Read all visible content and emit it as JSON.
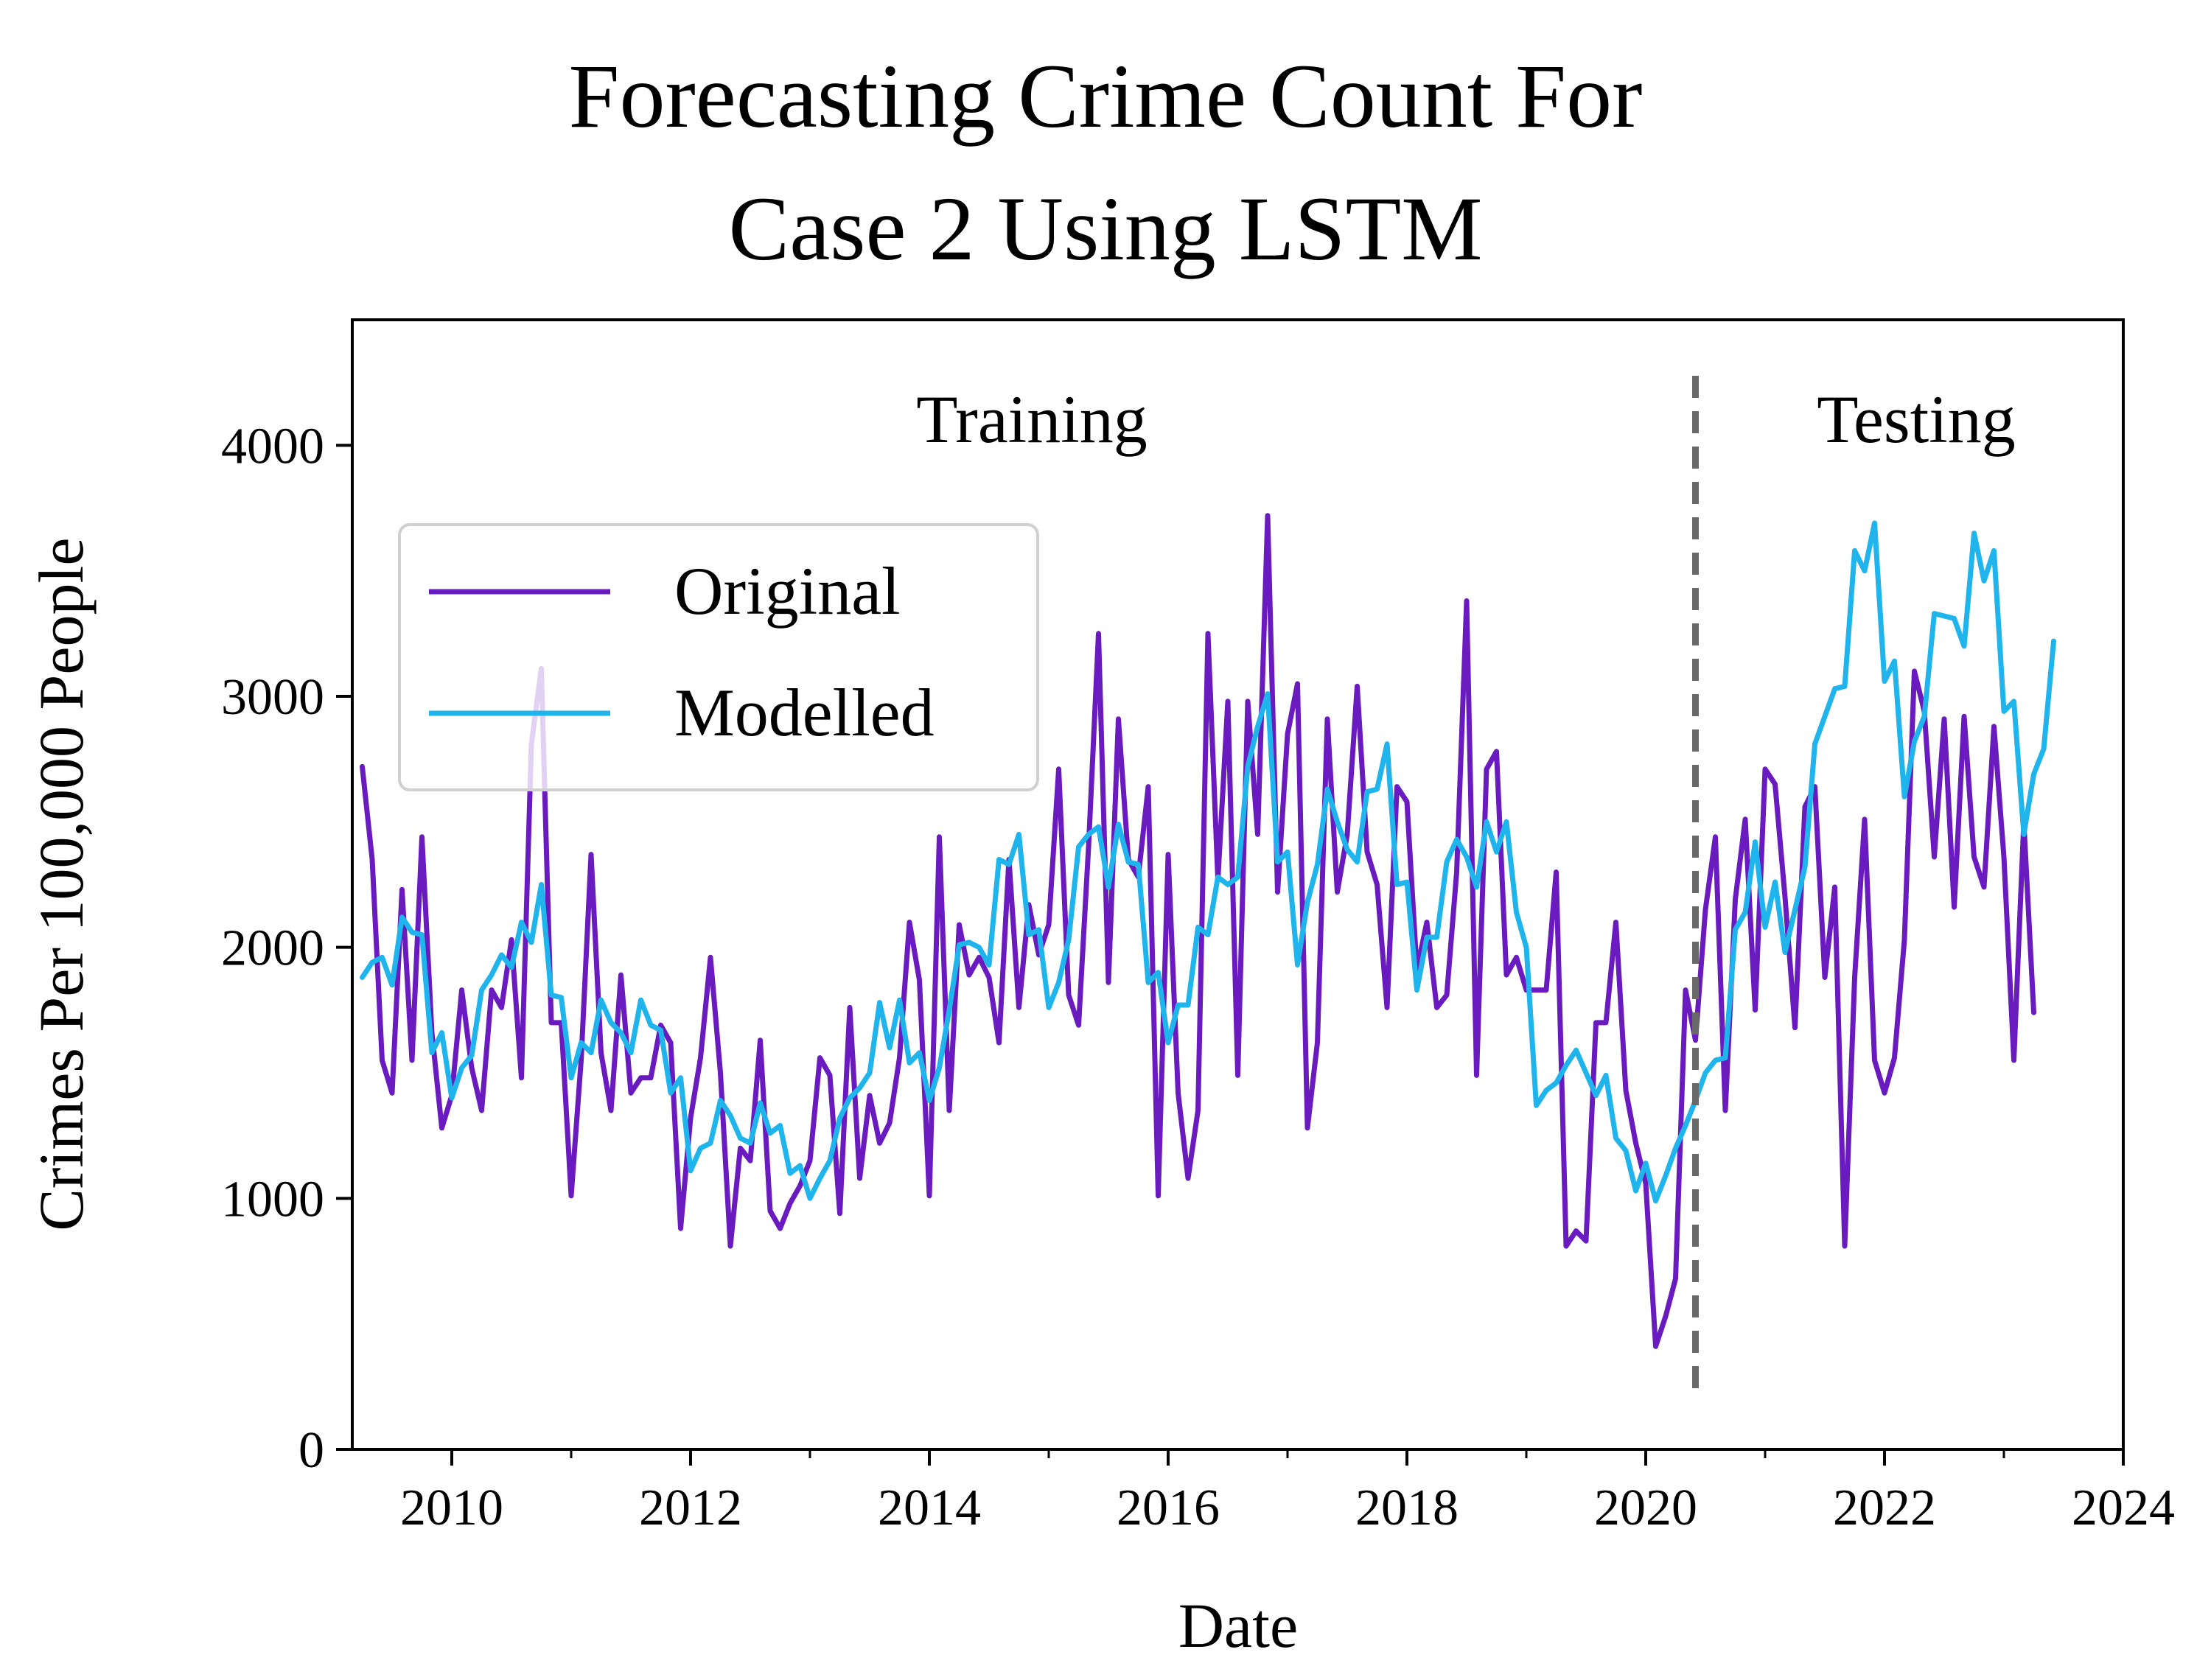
{
  "chart_data": {
    "type": "line",
    "title_lines": [
      "Forecasting Crime Count For",
      "Case 2 Using LSTM"
    ],
    "xlabel": "Date",
    "ylabel": "Crimes Per 100,000 People",
    "xlim": [
      "2009-03",
      "2024-01"
    ],
    "ylim": [
      0,
      4500
    ],
    "x_ticks": [
      "2010",
      "2012",
      "2014",
      "2016",
      "2018",
      "2020",
      "2022",
      "2024"
    ],
    "y_ticks": [
      "0",
      "1000",
      "2000",
      "3000",
      "4000"
    ],
    "grid": false,
    "legend_position": "upper-left",
    "split_date": "2020-06",
    "annotations": {
      "left": "Training",
      "right": "Testing"
    },
    "start_month": "2009-04",
    "series": [
      {
        "name": "Original",
        "color": "#6a1bbf",
        "values": [
          2720,
          2350,
          1550,
          1420,
          2230,
          1550,
          2440,
          1660,
          1280,
          1410,
          1830,
          1520,
          1350,
          1830,
          1760,
          2030,
          1480,
          2810,
          3110,
          1700,
          1700,
          1010,
          1550,
          2370,
          1580,
          1350,
          1890,
          1420,
          1480,
          1480,
          1690,
          1620,
          880,
          1320,
          1560,
          1960,
          1500,
          810,
          1200,
          1150,
          1630,
          950,
          880,
          980,
          1050,
          1150,
          1560,
          1490,
          940,
          1760,
          1080,
          1410,
          1220,
          1300,
          1560,
          2100,
          1870,
          1010,
          2440,
          1350,
          2090,
          1890,
          1960,
          1880,
          1620,
          2350,
          1760,
          2170,
          1970,
          2090,
          2710,
          1810,
          1690,
          2400,
          3250,
          1860,
          2910,
          2350,
          2280,
          2640,
          1010,
          2370,
          1420,
          1080,
          1350,
          3250,
          2270,
          2980,
          1490,
          2980,
          2450,
          3720,
          2220,
          2850,
          3050,
          1280,
          1620,
          2910,
          2220,
          2450,
          3040,
          2380,
          2250,
          1760,
          2640,
          2580,
          1910,
          2100,
          1760,
          1810,
          2300,
          3380,
          1490,
          2710,
          2780,
          1890,
          1960,
          1830,
          1830,
          1830,
          2300,
          810,
          870,
          830,
          1700,
          1700,
          2100,
          1430,
          1220,
          1060,
          410,
          530,
          680,
          1830,
          1630,
          2150,
          2440,
          1350,
          2190,
          2510,
          1750,
          2710,
          2650,
          2200,
          1680,
          2560,
          2640,
          1880,
          2240,
          810,
          1880,
          2510,
          1550,
          1420,
          1560,
          2030,
          3100,
          2940,
          2360,
          2910,
          2160,
          2920,
          2360,
          2240,
          2880,
          2360,
          1550,
          2500,
          1740
        ]
      },
      {
        "name": "Modelled",
        "color": "#1fb4ec",
        "values": [
          1880,
          1940,
          1960,
          1850,
          2120,
          2060,
          2050,
          1580,
          1660,
          1400,
          1520,
          1570,
          1830,
          1890,
          1970,
          1920,
          2100,
          2020,
          2250,
          1810,
          1800,
          1480,
          1620,
          1580,
          1790,
          1700,
          1660,
          1580,
          1790,
          1690,
          1670,
          1420,
          1480,
          1110,
          1200,
          1220,
          1390,
          1330,
          1240,
          1220,
          1380,
          1260,
          1290,
          1100,
          1130,
          1000,
          1080,
          1150,
          1320,
          1400,
          1440,
          1500,
          1780,
          1600,
          1790,
          1540,
          1580,
          1390,
          1520,
          1750,
          2010,
          2020,
          2000,
          1930,
          2350,
          2330,
          2450,
          2050,
          2070,
          1760,
          1860,
          2030,
          2400,
          2450,
          2480,
          2240,
          2490,
          2340,
          2330,
          1860,
          1900,
          1620,
          1770,
          1770,
          2080,
          2050,
          2280,
          2250,
          2280,
          2720,
          2880,
          3010,
          2340,
          2380,
          1930,
          2180,
          2330,
          2630,
          2500,
          2390,
          2340,
          2620,
          2630,
          2810,
          2250,
          2260,
          1830,
          2040,
          2040,
          2340,
          2430,
          2360,
          2240,
          2500,
          2380,
          2500,
          2140,
          2000,
          1370,
          1430,
          1460,
          1530,
          1590,
          1500,
          1410,
          1490,
          1240,
          1190,
          1030,
          1140,
          990,
          1090,
          1200,
          1290,
          1390,
          1500,
          1550,
          1560,
          2070,
          2140,
          2420,
          2080,
          2260,
          1980,
          2150,
          2320,
          2810,
          2920,
          3030,
          3040,
          3580,
          3500,
          3690,
          3060,
          3140,
          2600,
          2820,
          2920,
          3330,
          3320,
          3310,
          3200,
          3650,
          3460,
          3580,
          2940,
          2980,
          2450,
          2690,
          2790,
          3220
        ]
      }
    ]
  }
}
